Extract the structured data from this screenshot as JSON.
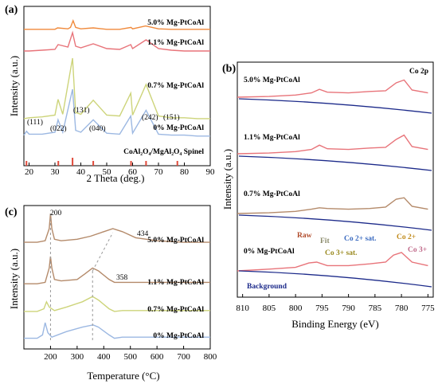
{
  "panels": {
    "a": {
      "panel_label": "(a)",
      "xlabel": "2 Theta (deg.)",
      "ylabel": "Intensity (a.u.)",
      "xticks": [
        "20",
        "30",
        "40",
        "50",
        "60",
        "70",
        "80",
        "90"
      ],
      "series_labels": [
        "5.0% Mg-PtCoAl",
        "1.1% Mg-PtCoAl",
        "0.7% Mg-PtCoAl",
        "0% Mg-PtCoAl"
      ],
      "peak_labels": [
        "(111)",
        "(022)",
        "(131)",
        "(040)",
        "(242)",
        "(151)"
      ],
      "reference_label": "CoAl₂O₄/MgAl₂O₄ Spinel"
    },
    "b": {
      "panel_label": "(b)",
      "corner_label": "Co 2p",
      "xlabel": "Binding Energy (eV)",
      "ylabel": "Intensity (a.u.)",
      "xticks": [
        "810",
        "805",
        "800",
        "795",
        "790",
        "785",
        "780",
        "775"
      ],
      "series_labels": [
        "5.0% Mg-PtCoAl",
        "1.1% Mg-PtCoAl",
        "0.7% Mg-PtCoAl",
        "0% Mg-PtCoAl"
      ],
      "annotations": {
        "raw": "Raw",
        "fit": "Fit",
        "co2sat": "Co 2+ sat.",
        "co3sat": "Co 3+ sat.",
        "co2": "Co 2+",
        "co3": "Co 3+",
        "background": "Background"
      }
    },
    "c": {
      "panel_label": "(c)",
      "xlabel": "Temperature (°C)",
      "ylabel": "Intensity (a.u.)",
      "xticks": [
        "200",
        "300",
        "400",
        "500",
        "600",
        "700",
        "800"
      ],
      "series_labels": [
        "5.0% Mg-PtCoAl",
        "1.1% Mg-PtCoAl",
        "0.7% Mg-PtCoAl",
        "0% Mg-PtCoAl"
      ],
      "peak_labels": [
        "200",
        "434",
        "358"
      ]
    }
  },
  "colors": {
    "orange": "#f08a3c",
    "red": "#e8747a",
    "olive": "#cdd47a",
    "blue": "#9cb8e2",
    "brown": "#b48a6a",
    "navy": "#1c2a8a",
    "spinel": "#e04a3a"
  },
  "chart_data": [
    {
      "type": "line",
      "panel": "a",
      "xlim": [
        18,
        90
      ],
      "series": [
        {
          "name": "5.0% Mg-PtCoAl",
          "x": [
            18,
            20,
            25,
            30,
            31,
            35,
            36,
            37,
            38,
            40,
            44.8,
            50,
            55,
            59.4,
            60,
            65,
            70,
            75,
            80,
            85,
            90
          ],
          "y": [
            0.1,
            0.1,
            0.1,
            0.1,
            0.25,
            0.15,
            0.3,
            1.0,
            0.3,
            0.15,
            0.25,
            0.1,
            0.1,
            0.3,
            0.15,
            0.45,
            0.15,
            0.1,
            0.1,
            0.1,
            0.1
          ]
        },
        {
          "name": "1.1% Mg-PtCoAl",
          "x": [
            18,
            20,
            25,
            30,
            31.2,
            35,
            36.8,
            38,
            40,
            44.8,
            50,
            55,
            59.3,
            60,
            65.2,
            70,
            75,
            80,
            85,
            90
          ],
          "y": [
            0.2,
            0.2,
            0.3,
            0.4,
            1.0,
            0.7,
            2.5,
            0.8,
            0.6,
            1.1,
            0.5,
            0.4,
            1.0,
            0.5,
            1.6,
            0.5,
            0.3,
            0.2,
            0.2,
            0.2
          ]
        },
        {
          "name": "0.7% Mg-PtCoAl",
          "x": [
            18,
            20,
            25,
            30,
            31.2,
            33,
            36.8,
            38,
            40,
            44.8,
            50,
            55,
            59.3,
            60,
            65.2,
            70,
            75,
            80,
            85,
            90
          ],
          "y": [
            0.1,
            0.2,
            0.3,
            0.5,
            2.3,
            0.6,
            7.0,
            0.8,
            0.6,
            2.2,
            0.5,
            0.4,
            3.0,
            0.5,
            4.0,
            0.4,
            0.2,
            0.2,
            0.1,
            0.1
          ]
        },
        {
          "name": "0% Mg-PtCoAl",
          "x": [
            18,
            19,
            20,
            25,
            30,
            31.2,
            33,
            36.8,
            38,
            40,
            44.8,
            50,
            55,
            59.3,
            60,
            65.2,
            70,
            75,
            80,
            85,
            90
          ],
          "y": [
            0.2,
            0.6,
            0.3,
            0.3,
            0.5,
            1.8,
            0.5,
            5.0,
            0.7,
            0.5,
            1.8,
            0.4,
            0.3,
            2.2,
            0.4,
            2.8,
            0.3,
            0.2,
            0.2,
            0.1,
            0.1
          ]
        }
      ],
      "reference_lines": [
        19,
        31.3,
        36.8,
        44.8,
        59.4,
        65.2,
        77.3
      ]
    },
    {
      "type": "line",
      "panel": "b",
      "xlim": [
        811,
        774
      ],
      "series": [
        {
          "name": "5.0% Mg-PtCoAl",
          "x": [
            811,
            805,
            800,
            797,
            795.5,
            794,
            790,
            786,
            783,
            781,
            779.5,
            778,
            775
          ],
          "y": [
            0.0,
            0.05,
            0.15,
            0.3,
            0.55,
            0.35,
            0.3,
            0.4,
            0.45,
            1.0,
            1.2,
            0.5,
            0.3
          ]
        },
        {
          "name": "1.1% Mg-PtCoAl",
          "x": [
            811,
            805,
            800,
            797,
            795.5,
            794,
            790,
            786,
            783,
            781,
            779.5,
            778,
            775
          ],
          "y": [
            0.0,
            0.05,
            0.15,
            0.3,
            0.6,
            0.35,
            0.3,
            0.4,
            0.45,
            1.0,
            1.3,
            0.5,
            0.3
          ]
        },
        {
          "name": "0.7% Mg-PtCoAl",
          "x": [
            811,
            805,
            800,
            797,
            795.5,
            794,
            790,
            786,
            783,
            781,
            779.5,
            778,
            775
          ],
          "y": [
            0.0,
            0.05,
            0.15,
            0.3,
            0.4,
            0.35,
            0.3,
            0.35,
            0.45,
            1.0,
            1.1,
            0.5,
            0.3
          ]
        },
        {
          "name": "0% Mg-PtCoAl",
          "x": [
            811,
            805,
            800,
            797.5,
            796,
            794,
            790,
            786,
            783,
            781.5,
            780,
            778,
            775
          ],
          "y": [
            0.0,
            0.1,
            0.2,
            0.45,
            0.5,
            0.3,
            0.3,
            0.4,
            0.5,
            0.9,
            1.05,
            0.5,
            0.3
          ]
        }
      ]
    },
    {
      "type": "line",
      "panel": "c",
      "xlim": [
        100,
        800
      ],
      "series": [
        {
          "name": "5.0% Mg-PtCoAl",
          "x": [
            100,
            150,
            180,
            195,
            200,
            205,
            215,
            240,
            300,
            350,
            400,
            434,
            470,
            520,
            600,
            700,
            800
          ],
          "y": [
            0.05,
            0.05,
            0.1,
            0.5,
            1.0,
            0.5,
            0.15,
            0.1,
            0.15,
            0.25,
            0.4,
            0.5,
            0.4,
            0.2,
            0.1,
            0.05,
            0.05
          ]
        },
        {
          "name": "1.1% Mg-PtCoAl",
          "x": [
            100,
            150,
            180,
            195,
            200,
            205,
            215,
            240,
            300,
            330,
            358,
            380,
            420,
            440,
            470,
            600,
            800
          ],
          "y": [
            0.05,
            0.05,
            0.1,
            0.6,
            1.0,
            0.6,
            0.2,
            0.15,
            0.2,
            0.4,
            0.6,
            0.5,
            0.2,
            0.1,
            0.1,
            0.1,
            0.1
          ]
        },
        {
          "name": "0.7% Mg-PtCoAl",
          "x": [
            100,
            150,
            175,
            185,
            195,
            215,
            260,
            320,
            358,
            380,
            420,
            440,
            470,
            600,
            800
          ],
          "y": [
            0.05,
            0.05,
            0.2,
            0.6,
            0.3,
            0.1,
            0.3,
            0.6,
            0.9,
            0.7,
            0.2,
            0.05,
            0.1,
            0.1,
            0.1
          ]
        },
        {
          "name": "0% Mg-PtCoAl",
          "x": [
            100,
            150,
            170,
            180,
            190,
            205,
            260,
            320,
            360,
            380,
            420,
            440,
            470,
            600,
            800
          ],
          "y": [
            0.05,
            0.05,
            0.2,
            0.75,
            0.3,
            0.1,
            0.35,
            0.55,
            0.65,
            0.55,
            0.2,
            0.05,
            0.1,
            0.1,
            0.1
          ]
        }
      ]
    }
  ]
}
